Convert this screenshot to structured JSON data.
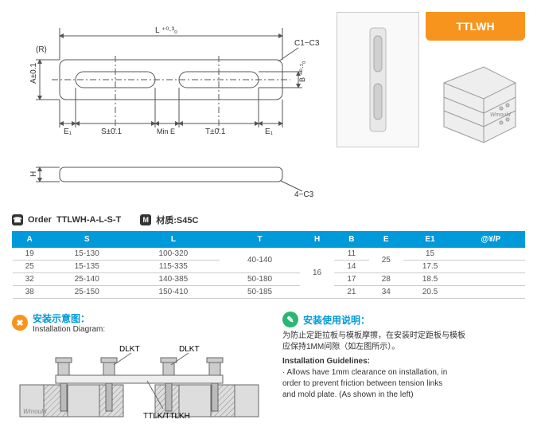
{
  "badge": "TTLWH",
  "drawing": {
    "R": "(R)",
    "Ltol": "L ⁺⁰·³₀",
    "chamferTop": "C1~C3",
    "Atol": "A±0.1",
    "Btol": "B ⁺⁰·¹₀",
    "E1L": "E₁",
    "Stol": "S±0.1",
    "MinE": "Min E",
    "Ttol": "T±0.1",
    "E1R": "E₁",
    "H": "H",
    "chamferSide": "4−C3"
  },
  "brand": "Wmould",
  "order": {
    "lbl": "Order",
    "fmt": "TTLWH-A-L-S-T",
    "matLbl": "材质:",
    "mat": "S45C"
  },
  "table": {
    "cols": [
      "A",
      "S",
      "L",
      "T",
      "H",
      "B",
      "E",
      "E1",
      "@¥/P"
    ],
    "rows": [
      [
        "19",
        "15-130",
        "100-320",
        "40-140",
        "16",
        "11",
        "25",
        "15",
        ""
      ],
      [
        "25",
        "15-135",
        "115-335",
        "40-140",
        "16",
        "14",
        "25",
        "17.5",
        ""
      ],
      [
        "32",
        "25-140",
        "140-385",
        "50-180",
        "16",
        "17",
        "28",
        "18.5",
        ""
      ],
      [
        "38",
        "25-150",
        "150-410",
        "50-185",
        "16",
        "21",
        "34",
        "20.5",
        ""
      ]
    ]
  },
  "install": {
    "titleCn": "安装示意图：",
    "titleEn": "Installation Diagram:",
    "dlkt": "DLKT",
    "ttlk": "TTLK/TTLKH"
  },
  "guide": {
    "titleCn": "安装使用说明：",
    "cn1": "为防止定距拉板与模板摩擦，在安装时定距板与模板",
    "cn2": "应保持1MM间隙（如左图所示）。",
    "titleEn": "Installation Guidelines:",
    "en1": "· Allows have 1mm clearance on installation, in",
    "en2": "  order to prevent friction between tension links",
    "en3": "  and mold plate. (As shown in the left)"
  },
  "colors": {
    "brand": "#f7941d",
    "th": "#0099d9"
  }
}
